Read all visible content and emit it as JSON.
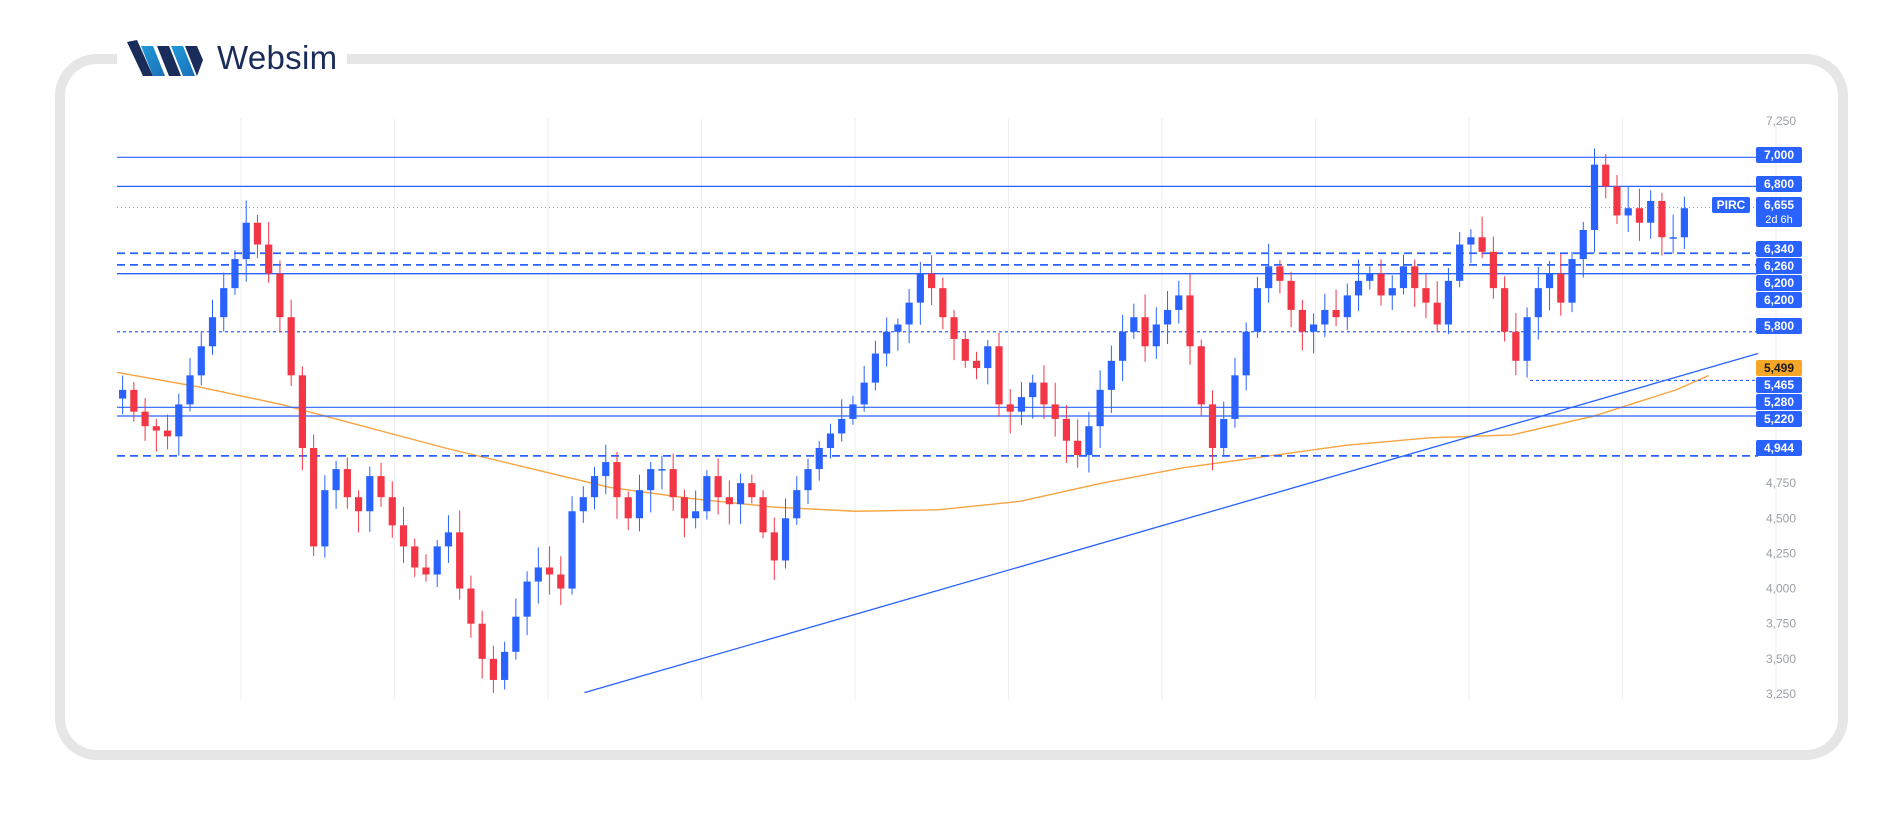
{
  "brand": {
    "name": "Websim"
  },
  "colors": {
    "up": "#2962ff",
    "down": "#f23645",
    "level": "#2962ff",
    "ma": "#f7a440",
    "grid": "#eceef2",
    "tag": "#2962ff",
    "tag_orange": "#f7a728"
  },
  "chart_data": {
    "type": "candlestick",
    "symbol": "PIRC",
    "last_price": "6,655",
    "countdown": "2d 6h",
    "y_axis_ticks": [
      "7,250",
      "4,750",
      "4,500",
      "4,250",
      "4,000",
      "3,750",
      "3,500",
      "3,250"
    ],
    "ylim": [
      3250,
      7250
    ],
    "grid": true,
    "horizontal_levels": [
      {
        "label": "7,000",
        "value": 7000,
        "style": "solid"
      },
      {
        "label": "6,800",
        "value": 6800,
        "style": "solid"
      },
      {
        "label": "6,340",
        "value": 6340,
        "style": "dashed"
      },
      {
        "label": "6,260",
        "value": 6260,
        "style": "dashed"
      },
      {
        "label": "6,200",
        "value": 6200,
        "style": "solid"
      },
      {
        "label": "6,200",
        "value": 6200,
        "style": "solid"
      },
      {
        "label": "5,800",
        "value": 5800,
        "style": "dotted"
      },
      {
        "label": "5,499",
        "value": 5499,
        "style": "moving-average"
      },
      {
        "label": "5,465",
        "value": 5465,
        "style": "dotted"
      },
      {
        "label": "5,280",
        "value": 5280,
        "style": "solid"
      },
      {
        "label": "5,220",
        "value": 5220,
        "style": "solid"
      },
      {
        "label": "4,944",
        "value": 4944,
        "style": "dashed"
      }
    ],
    "trendline": {
      "from": [
        0.23,
        3260
      ],
      "to": [
        1.0,
        5650
      ]
    },
    "moving_average_points": [
      [
        0.0,
        5520
      ],
      [
        0.05,
        5420
      ],
      [
        0.1,
        5300
      ],
      [
        0.15,
        5150
      ],
      [
        0.2,
        5000
      ],
      [
        0.25,
        4860
      ],
      [
        0.3,
        4720
      ],
      [
        0.35,
        4640
      ],
      [
        0.4,
        4580
      ],
      [
        0.45,
        4550
      ],
      [
        0.5,
        4560
      ],
      [
        0.55,
        4620
      ],
      [
        0.6,
        4750
      ],
      [
        0.65,
        4860
      ],
      [
        0.7,
        4940
      ],
      [
        0.75,
        5020
      ],
      [
        0.8,
        5070
      ],
      [
        0.85,
        5090
      ],
      [
        0.9,
        5220
      ],
      [
        0.95,
        5400
      ],
      [
        0.97,
        5499
      ]
    ],
    "close_series": [
      5400,
      5250,
      5150,
      5120,
      5080,
      5300,
      5500,
      5700,
      5900,
      6100,
      6300,
      6550,
      6400,
      6200,
      5900,
      5500,
      5000,
      4300,
      4700,
      4850,
      4650,
      4550,
      4800,
      4650,
      4450,
      4300,
      4150,
      4100,
      4300,
      4400,
      4000,
      3750,
      3500,
      3350,
      3550,
      3800,
      4050,
      4150,
      4100,
      4000,
      4550,
      4650,
      4800,
      4900,
      4650,
      4500,
      4700,
      4850,
      4850,
      4650,
      4500,
      4550,
      4800,
      4650,
      4600,
      4750,
      4650,
      4400,
      4200,
      4500,
      4700,
      4850,
      5000,
      5100,
      5200,
      5300,
      5450,
      5650,
      5800,
      5850,
      6000,
      6200,
      6100,
      5900,
      5750,
      5600,
      5550,
      5700,
      5300,
      5250,
      5350,
      5450,
      5300,
      5200,
      5050,
      4950,
      5150,
      5400,
      5600,
      5800,
      5900,
      5700,
      5850,
      5950,
      6050,
      5700,
      5300,
      5000,
      5200,
      5500,
      5800,
      6100,
      6250,
      6150,
      5950,
      5800,
      5850,
      5950,
      5900,
      6050,
      6150,
      6200,
      6050,
      6100,
      6250,
      6100,
      6000,
      5850,
      6150,
      6400,
      6450,
      6350,
      6100,
      5800,
      5600,
      5900,
      6100,
      6200,
      6000,
      6300,
      6500,
      6950,
      6800,
      6600,
      6650,
      6550,
      6700,
      6450,
      6450,
      6650
    ]
  }
}
